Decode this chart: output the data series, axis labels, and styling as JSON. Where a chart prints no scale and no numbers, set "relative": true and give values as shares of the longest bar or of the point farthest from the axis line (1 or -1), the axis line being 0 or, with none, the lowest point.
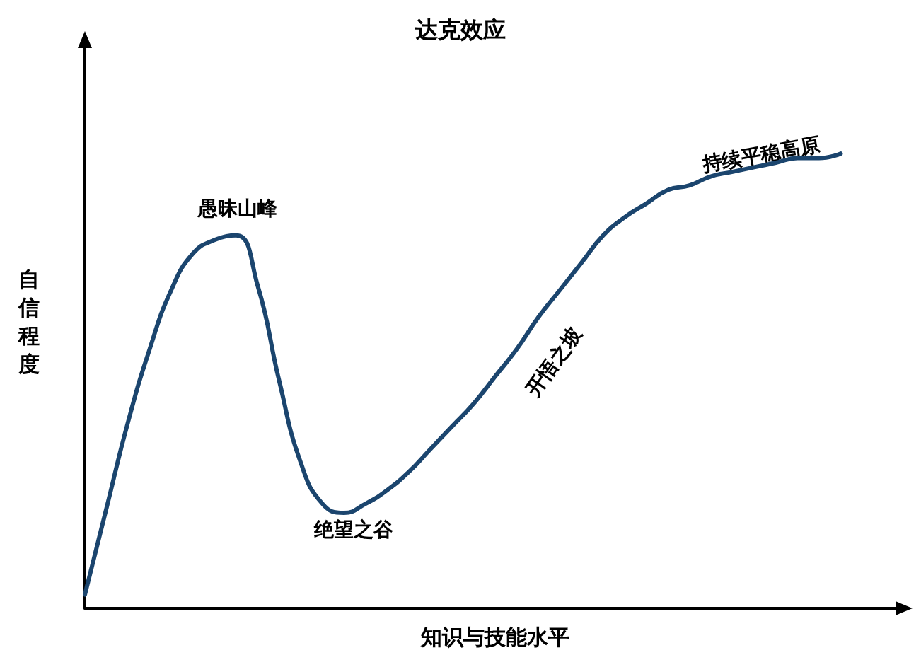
{
  "chart_data": {
    "type": "line",
    "title": "达克效应",
    "xlabel": "知识与技能水平",
    "ylabel": "自信程度",
    "relative": true,
    "grid": false,
    "marker": "none",
    "line_style": "solid",
    "categories": [
      null,
      null,
      null,
      null,
      null,
      null,
      null,
      null,
      null,
      null,
      null,
      null,
      null,
      null,
      null,
      null,
      null,
      null,
      null,
      null,
      null,
      null,
      null,
      null,
      null,
      null,
      null,
      null,
      null,
      null,
      null,
      null,
      null,
      null,
      null,
      null
    ],
    "series": [
      {
        "color": "#1b456e",
        "values": [
          0.03,
          0.22,
          0.41,
          0.57,
          0.7,
          0.78,
          0.81,
          0.82,
          0.71,
          0.5,
          0.32,
          0.23,
          0.21,
          0.23,
          0.26,
          0.3,
          0.35,
          0.4,
          0.45,
          0.51,
          0.57,
          0.64,
          0.7,
          0.76,
          0.82,
          0.86,
          0.89,
          0.92,
          0.93,
          0.95,
          0.96,
          0.97,
          0.98,
          0.99,
          0.99,
          1
        ]
      }
    ],
    "annotations": [
      "愚昧山峰",
      "绝望之谷",
      "开悟之坡",
      "持续平稳高原"
    ]
  }
}
